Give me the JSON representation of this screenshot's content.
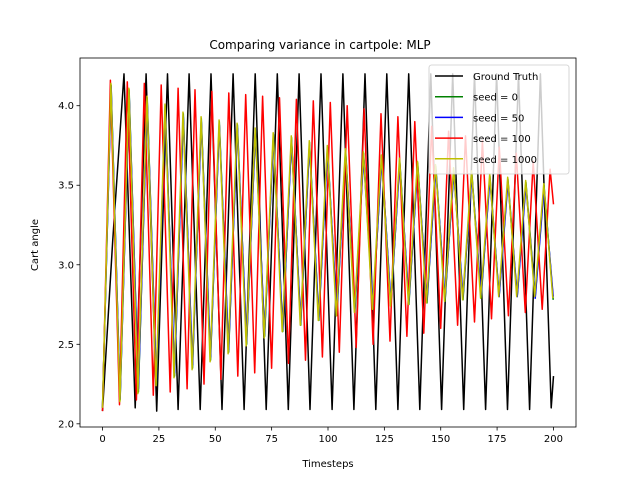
{
  "chart_data": {
    "type": "line",
    "title": "Comparing variance in cartpole: MLP",
    "xlabel": "Timesteps",
    "ylabel": "Cart angle",
    "xlim": [
      -10,
      210
    ],
    "ylim": [
      1.98,
      4.3
    ],
    "x_ticks": [
      0,
      25,
      50,
      75,
      100,
      125,
      150,
      175,
      200
    ],
    "y_ticks": [
      2.0,
      2.5,
      3.0,
      3.5,
      4.0
    ],
    "y_tick_labels": [
      "2.0",
      "2.5",
      "3.0",
      "3.5",
      "4.0"
    ],
    "legend_position": "top-right",
    "grid": false,
    "series": [
      {
        "name": "Ground Truth",
        "color": "#000000",
        "x": [
          0,
          4.5,
          9.5,
          14.5,
          19.3,
          24,
          28.8,
          33.5,
          38.4,
          43.3,
          48.1,
          53,
          57.9,
          62.8,
          67.7,
          72.6,
          77.5,
          82.4,
          87.2,
          92,
          96.9,
          101.8,
          106.6,
          111.5,
          116.4,
          121.2,
          126.1,
          131,
          135.8,
          140.7,
          145.6,
          150.4,
          155.3,
          160.2,
          165,
          169.9,
          174.8,
          179.6,
          184.5,
          189.4,
          194.2,
          199,
          200
        ],
        "y": [
          2.08,
          3.15,
          4.2,
          2.1,
          4.2,
          2.08,
          4.2,
          2.09,
          4.2,
          2.09,
          4.2,
          2.09,
          4.2,
          2.09,
          4.2,
          2.09,
          4.2,
          2.09,
          4.2,
          2.09,
          4.2,
          2.09,
          4.2,
          2.09,
          4.2,
          2.09,
          4.2,
          2.09,
          4.2,
          2.09,
          4.2,
          2.09,
          4.2,
          2.09,
          4.2,
          2.09,
          4.2,
          2.09,
          4.2,
          2.09,
          4.2,
          2.1,
          2.3
        ]
      },
      {
        "name": "seed = 0",
        "color": "#008000",
        "x": [
          0,
          3.8,
          7.8,
          11.8,
          15.9,
          19.8,
          23.9,
          27.8,
          31.9,
          35.8,
          39.9,
          43.8,
          47.9,
          51.8,
          55.9,
          59.8,
          63.9,
          67.8,
          71.9,
          75.8,
          79.9,
          83.8,
          87.9,
          91.8,
          95.9,
          99.8,
          103.9,
          107.8,
          111.9,
          115.8,
          119.9,
          123.8,
          127.9,
          131.8,
          135.9,
          139.8,
          143.9,
          147.8,
          151.9,
          155.8,
          159.9,
          163.8,
          167.9,
          171.8,
          175.9,
          179.8,
          183.9,
          187.8,
          191.9,
          195.8,
          199.9
        ],
        "y": [
          2.1,
          4.13,
          2.15,
          4.1,
          2.2,
          4.05,
          2.25,
          4.0,
          2.3,
          3.95,
          2.35,
          3.92,
          2.4,
          3.9,
          2.45,
          3.88,
          2.5,
          3.85,
          2.55,
          3.82,
          2.58,
          3.8,
          2.62,
          3.77,
          2.65,
          3.74,
          2.68,
          3.72,
          2.7,
          3.7,
          2.72,
          3.68,
          2.74,
          3.66,
          2.75,
          3.64,
          2.76,
          3.62,
          2.77,
          3.6,
          2.78,
          3.58,
          2.79,
          3.56,
          2.8,
          3.54,
          2.8,
          3.52,
          2.8,
          3.5,
          2.78
        ]
      },
      {
        "name": "seed = 50",
        "color": "#0000ff",
        "x": [
          0,
          3.8,
          7.8,
          11.8,
          15.9,
          19.8,
          23.9,
          27.8,
          31.9,
          35.8,
          39.9,
          43.8,
          47.9,
          51.8,
          55.9,
          59.8,
          63.9,
          67.8,
          71.9,
          75.8,
          79.9,
          83.8,
          87.9,
          91.8,
          95.9,
          99.8,
          103.9,
          107.8,
          111.9,
          115.8,
          119.9,
          123.8,
          127.9,
          131.8,
          135.9,
          139.8,
          143.9,
          147.8,
          151.9,
          155.8,
          159.9,
          163.8,
          167.9,
          171.8,
          175.9,
          179.8,
          183.9,
          187.8,
          191.9,
          195.8,
          199.9
        ],
        "y": [
          2.1,
          4.12,
          2.16,
          4.08,
          2.22,
          4.03,
          2.27,
          3.98,
          2.32,
          3.93,
          2.37,
          3.9,
          2.42,
          3.88,
          2.47,
          3.86,
          2.52,
          3.83,
          2.57,
          3.8,
          2.6,
          3.78,
          2.64,
          3.75,
          2.67,
          3.72,
          2.7,
          3.7,
          2.72,
          3.68,
          2.74,
          3.66,
          2.76,
          3.64,
          2.77,
          3.62,
          2.78,
          3.6,
          2.79,
          3.58,
          2.8,
          3.56,
          2.81,
          3.54,
          2.8,
          3.52,
          2.8,
          3.5,
          2.79,
          3.48,
          2.8
        ]
      },
      {
        "name": "seed = 100",
        "color": "#ff0000",
        "x": [
          0,
          3.5,
          7.5,
          11,
          15,
          18.5,
          22.5,
          26,
          30,
          33.5,
          37.5,
          41,
          45,
          48.5,
          52.5,
          56,
          60,
          63.5,
          67.5,
          71,
          75,
          78.5,
          82.5,
          86,
          90,
          93.5,
          97.5,
          101,
          105,
          108.5,
          112.5,
          116,
          120,
          123.5,
          127.5,
          131,
          135,
          138.5,
          142.5,
          146,
          150,
          153.5,
          157.5,
          161,
          165,
          168.5,
          172.5,
          176,
          180,
          183.5,
          187.5,
          191,
          195,
          198.5,
          200
        ],
        "y": [
          2.08,
          4.16,
          2.12,
          4.15,
          2.15,
          4.14,
          2.18,
          4.13,
          2.2,
          4.11,
          2.22,
          4.1,
          2.25,
          4.09,
          2.28,
          4.08,
          2.3,
          4.07,
          2.32,
          4.06,
          2.35,
          4.05,
          2.38,
          4.04,
          2.4,
          4.03,
          2.42,
          4.02,
          2.45,
          4.0,
          2.48,
          3.98,
          2.5,
          3.95,
          2.52,
          3.93,
          2.55,
          3.9,
          2.57,
          3.87,
          2.6,
          3.84,
          2.62,
          3.81,
          2.64,
          3.78,
          2.66,
          3.74,
          2.68,
          3.7,
          2.7,
          3.65,
          2.72,
          3.6,
          3.38
        ]
      },
      {
        "name": "seed = 1000",
        "color": "#bfbf00",
        "x": [
          0,
          3.7,
          7.7,
          11.7,
          15.7,
          19.7,
          23.7,
          27.7,
          31.7,
          35.7,
          39.7,
          43.7,
          47.7,
          51.7,
          55.7,
          59.7,
          63.7,
          67.7,
          71.7,
          75.7,
          79.7,
          83.7,
          87.7,
          91.7,
          95.7,
          99.7,
          103.7,
          107.7,
          111.7,
          115.7,
          119.7,
          123.7,
          127.7,
          131.7,
          135.7,
          139.7,
          143.7,
          147.7,
          151.7,
          155.7,
          159.7,
          163.7,
          167.7,
          171.7,
          175.7,
          179.7,
          183.7,
          187.7,
          191.7,
          195.7,
          199.7
        ],
        "y": [
          2.1,
          4.14,
          2.14,
          4.11,
          2.19,
          4.06,
          2.24,
          4.01,
          2.29,
          3.96,
          2.34,
          3.93,
          2.39,
          3.91,
          2.44,
          3.89,
          2.49,
          3.86,
          2.54,
          3.83,
          2.58,
          3.81,
          2.62,
          3.78,
          2.65,
          3.75,
          2.68,
          3.73,
          2.7,
          3.71,
          2.72,
          3.69,
          2.74,
          3.67,
          2.75,
          3.65,
          2.76,
          3.63,
          2.77,
          3.61,
          2.78,
          3.59,
          2.79,
          3.57,
          2.8,
          3.55,
          2.8,
          3.53,
          2.8,
          3.51,
          2.79
        ]
      }
    ]
  }
}
